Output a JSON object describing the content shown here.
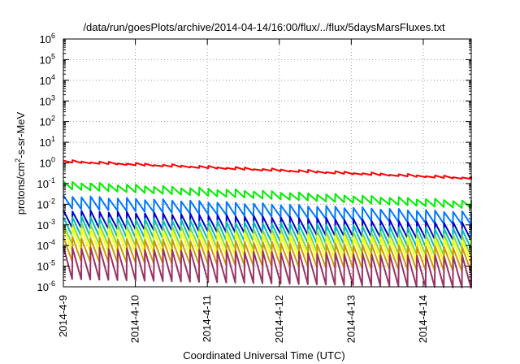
{
  "chart_data": {
    "type": "line",
    "title": "/data/run/goesPlots/archive/2014-04-14/16:00/flux/../flux/5daysMarsFluxes.txt",
    "xlabel": "Coordinated Universal Time (UTC)",
    "ylabel": {
      "pre": "protons/cm",
      "sup": "2",
      "post": "-s-sr-MeV"
    },
    "x_ticks": [
      "2014-4-9",
      "2014-4-10",
      "2014-4-11",
      "2014-4-12",
      "2014-4-13",
      "2014-4-14"
    ],
    "xlim": [
      "2014-04-09 00:00",
      "2014-04-14 16:00"
    ],
    "y_scale": "log",
    "ylim": [
      1e-06,
      1000000.0
    ],
    "y_ticks": [
      {
        "base": "10",
        "exp": "-6"
      },
      {
        "base": "10",
        "exp": "-5"
      },
      {
        "base": "10",
        "exp": "-4"
      },
      {
        "base": "10",
        "exp": "-3"
      },
      {
        "base": "10",
        "exp": "-2"
      },
      {
        "base": "10",
        "exp": "-1"
      },
      {
        "base": "10",
        "exp": "0"
      },
      {
        "base": "10",
        "exp": "1"
      },
      {
        "base": "10",
        "exp": "2"
      },
      {
        "base": "10",
        "exp": "3"
      },
      {
        "base": "10",
        "exp": "4"
      },
      {
        "base": "10",
        "exp": "5"
      },
      {
        "base": "10",
        "exp": "6"
      }
    ],
    "grid": true,
    "sawtooth_teeth_per_day": 8,
    "series": [
      {
        "color": "#ff0000",
        "start": 1.3,
        "end": 0.2,
        "tooth_drop": 0.18
      },
      {
        "color": "#00ee00",
        "start": 0.12,
        "end": 0.014,
        "tooth_drop": 0.55
      },
      {
        "color": "#0077ff",
        "start": 0.025,
        "end": 0.004,
        "tooth_drop": 0.75
      },
      {
        "color": "#0000cc",
        "start": 0.005,
        "end": 0.0012,
        "tooth_drop": 0.85
      },
      {
        "color": "#00bbbb",
        "start": 0.0025,
        "end": 0.0006,
        "tooth_drop": 0.88
      },
      {
        "color": "#77dd55",
        "start": 0.0012,
        "end": 0.0003,
        "tooth_drop": 0.9
      },
      {
        "color": "#ffff00",
        "start": 0.0007,
        "end": 0.00018,
        "tooth_drop": 0.92
      },
      {
        "color": "#cc9900",
        "start": 0.00025,
        "end": 8e-05,
        "tooth_drop": 0.93
      },
      {
        "color": "#993366",
        "start": 8e-05,
        "end": 3e-05,
        "tooth_drop": 0.97
      }
    ]
  }
}
